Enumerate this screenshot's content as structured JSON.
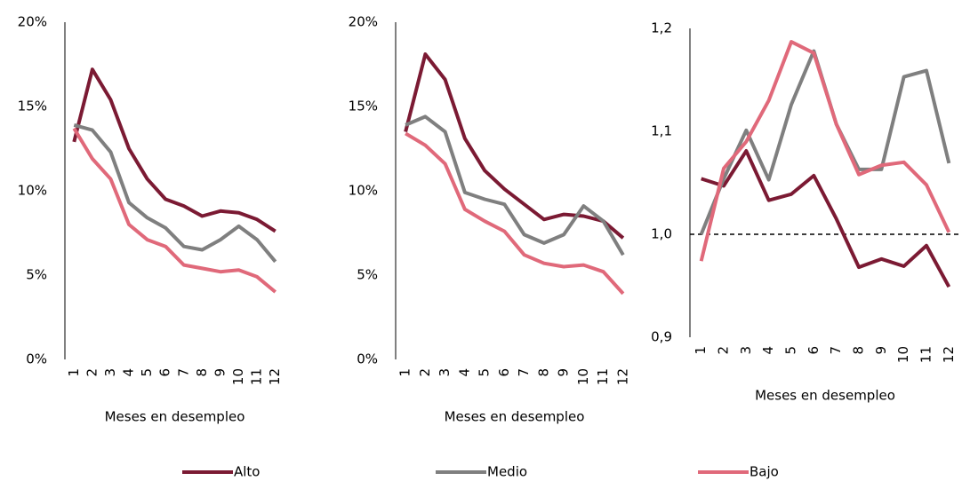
{
  "chart_data": [
    {
      "type": "line",
      "x_label": "Meses en desempleo",
      "categories": [
        "1",
        "2",
        "3",
        "4",
        "5",
        "6",
        "7",
        "8",
        "9",
        "10",
        "11",
        "12"
      ],
      "ylim": [
        0,
        20
      ],
      "yticks": [
        {
          "value": 0,
          "label": "0%"
        },
        {
          "value": 5,
          "label": "5%"
        },
        {
          "value": 10,
          "label": "10%"
        },
        {
          "value": 15,
          "label": "15%"
        },
        {
          "value": 20,
          "label": "20%"
        }
      ],
      "series": [
        {
          "name": "Alto",
          "color": "#7b1a33",
          "values": [
            12.9,
            17.2,
            15.4,
            12.5,
            10.7,
            9.5,
            9.1,
            8.5,
            8.8,
            8.7,
            8.3,
            7.6
          ]
        },
        {
          "name": "Medio",
          "color": "#7f7f7f",
          "values": [
            13.9,
            13.6,
            12.3,
            9.3,
            8.4,
            7.8,
            6.7,
            6.5,
            7.1,
            7.9,
            7.1,
            5.8
          ]
        },
        {
          "name": "Bajo",
          "color": "#e0697a",
          "values": [
            13.7,
            11.9,
            10.7,
            8.0,
            7.1,
            6.7,
            5.6,
            5.4,
            5.2,
            5.3,
            4.9,
            4.0
          ]
        }
      ]
    },
    {
      "type": "line",
      "x_label": "Meses en desempleo",
      "categories": [
        "1",
        "2",
        "3",
        "4",
        "5",
        "6",
        "7",
        "8",
        "9",
        "10",
        "11",
        "12"
      ],
      "ylim": [
        0,
        20
      ],
      "yticks": [
        {
          "value": 0,
          "label": "0%"
        },
        {
          "value": 5,
          "label": "5%"
        },
        {
          "value": 10,
          "label": "10%"
        },
        {
          "value": 15,
          "label": "15%"
        },
        {
          "value": 20,
          "label": "20%"
        }
      ],
      "series": [
        {
          "color": "#7b1a33",
          "values": [
            13.5,
            18.1,
            16.6,
            13.1,
            11.2,
            10.1,
            9.2,
            8.3,
            8.6,
            8.5,
            8.2,
            7.2
          ]
        },
        {
          "color": "#7f7f7f",
          "values": [
            13.9,
            14.4,
            13.5,
            9.9,
            9.5,
            9.2,
            7.4,
            6.9,
            7.4,
            9.1,
            8.2,
            6.2
          ]
        },
        {
          "color": "#e0697a",
          "values": [
            13.4,
            12.7,
            11.6,
            8.9,
            8.2,
            7.6,
            6.2,
            5.7,
            5.5,
            5.6,
            5.2,
            3.9
          ]
        }
      ]
    },
    {
      "type": "line",
      "x_label": "Meses en desempleo",
      "categories": [
        "1",
        "2",
        "3",
        "4",
        "5",
        "6",
        "7",
        "8",
        "9",
        "10",
        "11",
        "12"
      ],
      "ylim": [
        0.9,
        1.2
      ],
      "yticks": [
        {
          "value": 0.9,
          "label": "0,9"
        },
        {
          "value": 1.0,
          "label": "1,0"
        },
        {
          "value": 1.1,
          "label": "1,1"
        },
        {
          "value": 1.2,
          "label": "1,2"
        }
      ],
      "reference_line": 1.0,
      "series": [
        {
          "color": "#7b1a33",
          "values": [
            1.054,
            1.047,
            1.081,
            1.033,
            1.039,
            1.057,
            1.015,
            0.968,
            0.976,
            0.969,
            0.989,
            0.949
          ]
        },
        {
          "color": "#7f7f7f",
          "values": [
            1.0,
            1.054,
            1.101,
            1.053,
            1.126,
            1.178,
            1.107,
            1.063,
            1.063,
            1.153,
            1.159,
            1.069
          ]
        },
        {
          "color": "#e0697a",
          "values": [
            0.974,
            1.064,
            1.09,
            1.13,
            1.187,
            1.176,
            1.107,
            1.058,
            1.067,
            1.07,
            1.048,
            1.002
          ]
        }
      ]
    }
  ]
}
